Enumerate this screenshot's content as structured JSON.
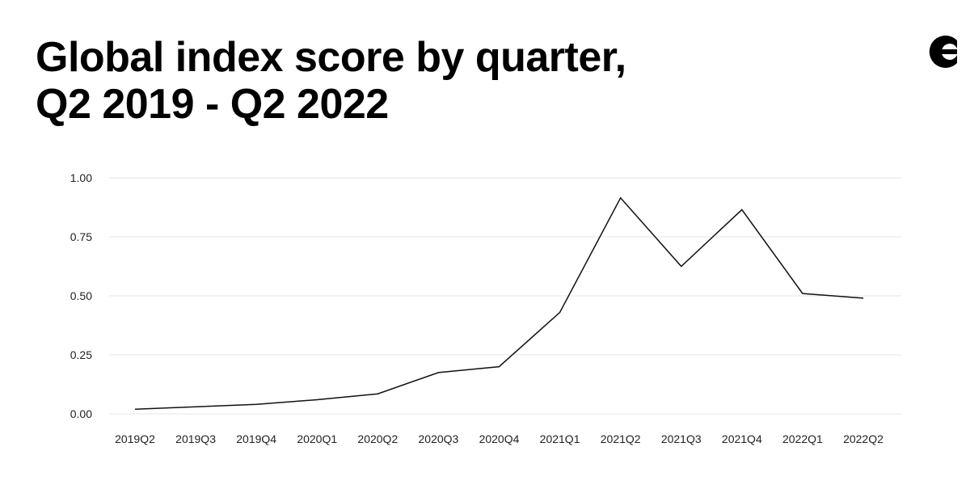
{
  "title": {
    "line1": "Global index score by quarter,",
    "line2": "Q2 2019 - Q2 2022"
  },
  "logo": {
    "icon": "brand-logo-icon"
  },
  "colors": {
    "line": "#111111",
    "grid": "#e6e6e6",
    "text": "#222222"
  },
  "chart_data": {
    "type": "line",
    "title": "Global index score by quarter, Q2 2019 - Q2 2022",
    "xlabel": "",
    "ylabel": "",
    "categories": [
      "2019Q2",
      "2019Q3",
      "2019Q4",
      "2020Q1",
      "2020Q2",
      "2020Q3",
      "2020Q4",
      "2021Q1",
      "2021Q2",
      "2021Q3",
      "2021Q4",
      "2022Q1",
      "2022Q2"
    ],
    "series": [
      {
        "values": [
          0.02,
          0.03,
          0.04,
          0.06,
          0.085,
          0.175,
          0.2,
          0.43,
          0.915,
          0.625,
          0.865,
          0.51,
          0.49
        ]
      }
    ],
    "ylim": [
      0,
      1
    ],
    "yticks": [
      "0.00",
      "0.25",
      "0.50",
      "0.75",
      "1.00"
    ],
    "grid": true,
    "legend": "none"
  }
}
